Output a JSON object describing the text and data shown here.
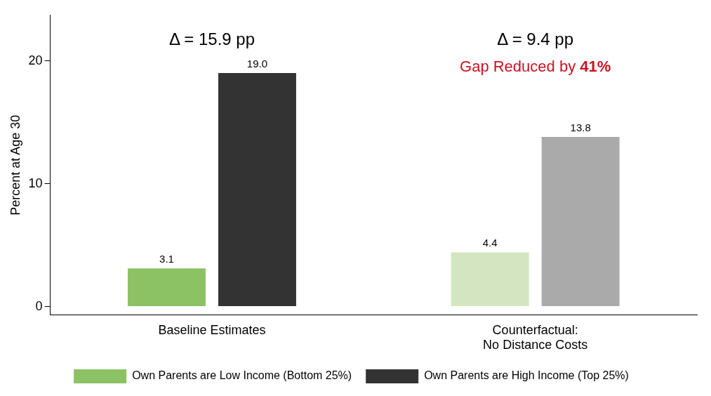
{
  "chart_data": {
    "type": "bar",
    "ylabel": "Percent at Age 30",
    "categories": [
      "Baseline Estimates",
      "Counterfactual:\nNo Distance Costs"
    ],
    "series": [
      {
        "name": "Own Parents are Low Income (Bottom 25%)",
        "color": "#8cc263",
        "colors": [
          "#8cc263",
          "#d3e6c1"
        ],
        "values": [
          3.1,
          4.4
        ],
        "value_labels": [
          "3.1",
          "4.4"
        ]
      },
      {
        "name": "Own Parents are High Income (Top 25%)",
        "color": "#333333",
        "colors": [
          "#333333",
          "#aaaaaa"
        ],
        "values": [
          19.0,
          13.8
        ],
        "value_labels": [
          "19.0",
          "13.8"
        ]
      }
    ],
    "ylim": [
      -0.7,
      23.7
    ],
    "yticks": [
      0,
      10,
      20
    ],
    "grid": false,
    "legend": "bottom",
    "annotations": [
      "Δ = 15.9 pp",
      "Δ = 9.4 pp",
      "Gap Reduced by 41%"
    ]
  }
}
